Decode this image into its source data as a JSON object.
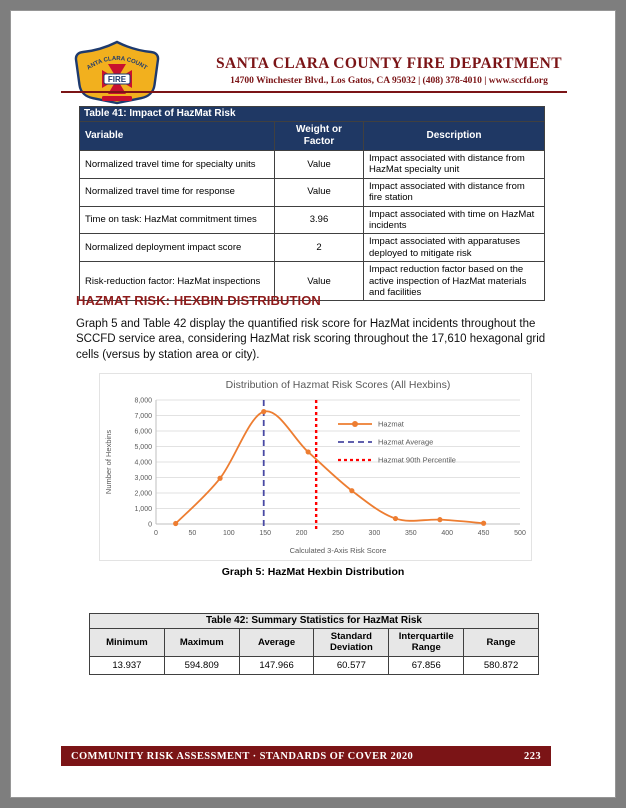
{
  "header": {
    "org_name": "SANTA CLARA COUNTY FIRE DEPARTMENT",
    "address_line": "14700 Winchester Blvd., Los Gatos, CA 95032 | (408) 378-4010 | www.sccfd.org",
    "logo": {
      "arc_text": "SANTA CLARA COUNTY",
      "center_text": "FIRE"
    }
  },
  "table41": {
    "title": "Table 41: Impact of HazMat Risk",
    "columns": [
      "Variable",
      "Weight or Factor",
      "Description"
    ],
    "rows": [
      [
        "Normalized travel time for specialty units",
        "Value",
        "Impact associated with distance from HazMat specialty unit"
      ],
      [
        "Normalized travel time for response",
        "Value",
        "Impact associated with distance from fire station"
      ],
      [
        "Time on task: HazMat commitment times",
        "3.96",
        "Impact associated with time on HazMat incidents"
      ],
      [
        "Normalized deployment impact score",
        "2",
        "Impact associated with apparatuses deployed to mitigate risk"
      ],
      [
        "Risk-reduction factor: HazMat inspections",
        "Value",
        "Impact reduction factor based on the active inspection of HazMat materials and facilities"
      ]
    ]
  },
  "section": {
    "heading": "HAZMAT RISK: HEXBIN DISTRIBUTION",
    "paragraph": "Graph 5 and Table 42 display the quantified risk score for HazMat incidents throughout the SCCFD service area, considering HazMat risk scoring throughout the 17,610 hexagonal grid cells (versus by station area or city)."
  },
  "graph_caption": "Graph 5: HazMat Hexbin Distribution",
  "table42": {
    "title": "Table 42: Summary Statistics for HazMat Risk",
    "columns": [
      "Minimum",
      "Maximum",
      "Average",
      "Standard Deviation",
      "Interquartile Range",
      "Range"
    ],
    "values": [
      "13.937",
      "594.809",
      "147.966",
      "60.577",
      "67.856",
      "580.872"
    ]
  },
  "footer": {
    "left_text": "COMMUNITY RISK ASSESSMENT · STANDARDS OF COVER 2020",
    "page_number": "223"
  },
  "colors": {
    "maroon": "#7B1416",
    "navy_table_header": "#1F3864",
    "chart_series_orange": "#ED7D31",
    "chart_average_blue": "#4949A3",
    "chart_percentile_red": "#FF0000"
  },
  "chart_data": {
    "type": "line",
    "title": "Distribution of Hazmat Risk Scores (All Hexbins)",
    "xlabel": "Calculated 3-Axis Risk Score",
    "ylabel": "Number of Hexbins",
    "xlim": [
      0,
      500
    ],
    "ylim": [
      0,
      8000
    ],
    "x_tick_step": 50,
    "y_tick_step": 1000,
    "grid": "horizontal",
    "legend_position": "inside center-right",
    "series": [
      {
        "name": "Hazmat",
        "color": "#ED7D31",
        "x": [
          27,
          88,
          148,
          209,
          269,
          329,
          390,
          450
        ],
        "y": [
          30,
          2950,
          7250,
          4650,
          2150,
          350,
          280,
          50
        ]
      }
    ],
    "vlines": [
      {
        "name": "Hazmat Average",
        "x": 147.966,
        "color": "#4949A3",
        "dash": "6,4",
        "width": 1.8
      },
      {
        "name": "Hazmat 90th Percentile",
        "x": 220,
        "color": "#FF0000",
        "dash": "3,3",
        "width": 2.4
      }
    ]
  }
}
